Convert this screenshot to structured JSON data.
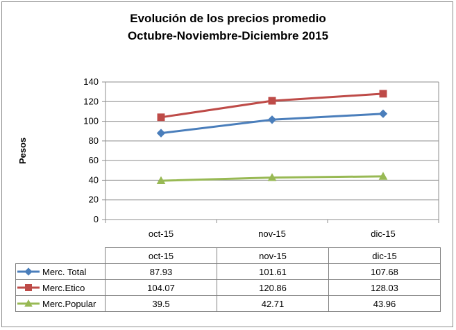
{
  "chart_data": {
    "type": "line",
    "title": "Evolución de los precios promedio",
    "subtitle": "Octubre-Noviembre-Diciembre 2015",
    "xlabel": "",
    "ylabel": "Pesos",
    "ylim": [
      0,
      140
    ],
    "yticks": [
      "0",
      "20",
      "40",
      "60",
      "80",
      "100",
      "120",
      "140"
    ],
    "categories": [
      "oct-15",
      "nov-15",
      "dic-15"
    ],
    "grid": true,
    "legend": "table",
    "series": [
      {
        "name": "Merc. Total",
        "values": [
          87.93,
          101.61,
          107.68
        ],
        "display": [
          "87.93",
          "101.61",
          "107.68"
        ],
        "color": "#4a7ebb",
        "marker": "diamond"
      },
      {
        "name": "Merc.Etico",
        "values": [
          104.07,
          120.86,
          128.03
        ],
        "display": [
          "104.07",
          "120.86",
          "128.03"
        ],
        "color": "#be4b48",
        "marker": "square"
      },
      {
        "name": "Merc.Popular",
        "values": [
          39.5,
          42.71,
          43.96
        ],
        "display": [
          "39.5",
          "42.71",
          "43.96"
        ],
        "color": "#98b954",
        "marker": "triangle"
      }
    ]
  }
}
